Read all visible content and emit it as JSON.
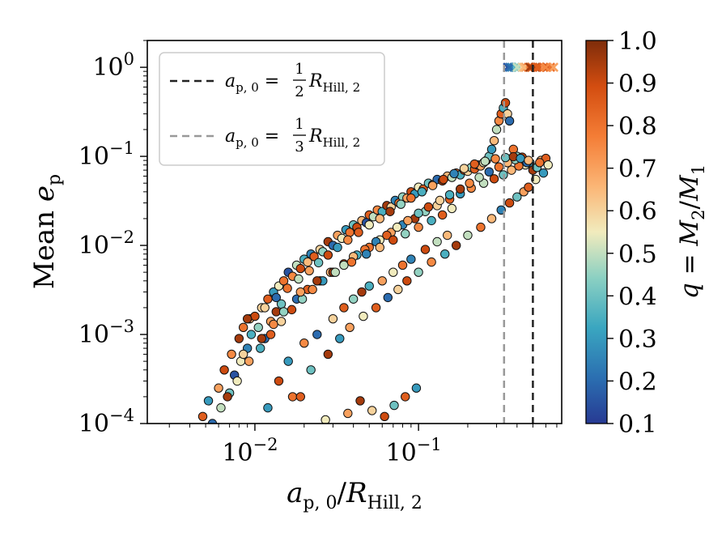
{
  "chart_data": {
    "type": "scatter",
    "title": "",
    "xlabel": "a_{p,0}/R_{Hill,2}",
    "ylabel": "Mean e_p",
    "xscale": "log",
    "yscale": "log",
    "xlim": [
      0.0022,
      0.75
    ],
    "ylim": [
      0.0001,
      2.0
    ],
    "xticks": [
      {
        "value": 0.01,
        "base": "10",
        "exp": "−2"
      },
      {
        "value": 0.1,
        "base": "10",
        "exp": "−1"
      }
    ],
    "yticks": [
      {
        "value": 1,
        "base": "10",
        "exp": "0"
      },
      {
        "value": 0.1,
        "base": "10",
        "exp": "−1"
      },
      {
        "value": 0.01,
        "base": "10",
        "exp": "−2"
      },
      {
        "value": 0.001,
        "base": "10",
        "exp": "−3"
      },
      {
        "value": 0.0001,
        "base": "10",
        "exp": "−4"
      }
    ],
    "grid": false,
    "vlines": [
      {
        "x": 0.5,
        "color": "#222222",
        "style": "dashed",
        "label": "a_{p,0} = 1/2 R_{Hill,2}",
        "label_var": "a",
        "label_sub": "p, 0",
        "label_num": "1",
        "label_den": "2",
        "label_R": "R",
        "label_Rsub": "Hill, 2"
      },
      {
        "x": 0.3333,
        "color": "#999999",
        "style": "dashed",
        "label": "a_{p,0} = 1/3 R_{Hill,2}",
        "label_var": "a",
        "label_sub": "p, 0",
        "label_num": "1",
        "label_den": "3",
        "label_R": "R",
        "label_Rsub": "Hill, 2"
      }
    ],
    "legend_position": "upper-left",
    "colorbar": {
      "label": "q = M_2/M_1",
      "range": [
        0.1,
        1.0
      ],
      "ticks": [
        "1.0",
        "0.9",
        "0.8",
        "0.7",
        "0.6",
        "0.5",
        "0.4",
        "0.3",
        "0.2",
        "0.1"
      ],
      "colormap": "RdYlBu_r-style (blue → cream → dark orange)"
    },
    "points_note": "Several thousand scatter points; representative sample listed. Crosses at Mean e_p = 1 mark unstable/ejected systems.",
    "series": [
      {
        "name": "circles",
        "marker": "circle",
        "x": [
          0.0048,
          0.0052,
          0.0055,
          0.006,
          0.0062,
          0.0065,
          0.007,
          0.0072,
          0.0075,
          0.008,
          0.0082,
          0.0085,
          0.009,
          0.0093,
          0.0095,
          0.01,
          0.0105,
          0.011,
          0.0115,
          0.012,
          0.0125,
          0.013,
          0.0135,
          0.014,
          0.0145,
          0.015,
          0.016,
          0.017,
          0.018,
          0.019,
          0.02,
          0.021,
          0.022,
          0.023,
          0.025,
          0.026,
          0.028,
          0.03,
          0.032,
          0.034,
          0.036,
          0.038,
          0.04,
          0.042,
          0.045,
          0.048,
          0.05,
          0.053,
          0.056,
          0.06,
          0.064,
          0.068,
          0.072,
          0.076,
          0.08,
          0.085,
          0.09,
          0.095,
          0.1,
          0.107,
          0.115,
          0.122,
          0.13,
          0.14,
          0.15,
          0.16,
          0.17,
          0.18,
          0.19,
          0.2,
          0.21,
          0.22,
          0.23,
          0.24,
          0.25,
          0.26,
          0.27,
          0.28,
          0.29,
          0.3,
          0.31,
          0.32,
          0.33,
          0.34,
          0.35,
          0.36,
          0.38,
          0.4,
          0.42,
          0.45,
          0.48,
          0.5,
          0.53,
          0.56,
          0.6,
          0.014,
          0.016,
          0.02,
          0.024,
          0.03,
          0.035,
          0.04,
          0.045,
          0.05,
          0.06,
          0.07,
          0.08,
          0.09,
          0.11,
          0.13,
          0.15,
          0.017,
          0.022,
          0.028,
          0.033,
          0.038,
          0.046,
          0.055,
          0.065,
          0.075,
          0.085,
          0.1,
          0.12,
          0.145,
          0.17,
          0.2,
          0.24,
          0.28,
          0.32,
          0.36,
          0.4,
          0.44,
          0.47,
          0.52,
          0.58,
          0.0085,
          0.011,
          0.013,
          0.015,
          0.018,
          0.021,
          0.025,
          0.029,
          0.035,
          0.042,
          0.05,
          0.058,
          0.068,
          0.08,
          0.095,
          0.11,
          0.13,
          0.155,
          0.18,
          0.21,
          0.25,
          0.29,
          0.33,
          0.37,
          0.41,
          0.46,
          0.0068,
          0.0078,
          0.0092,
          0.0108,
          0.0125,
          0.0145,
          0.0168,
          0.0195,
          0.0225,
          0.026,
          0.03,
          0.035,
          0.04,
          0.047,
          0.055,
          0.064,
          0.074,
          0.086,
          0.1,
          0.115,
          0.135,
          0.155,
          0.18,
          0.205,
          0.235,
          0.27,
          0.31,
          0.35,
          0.39,
          0.43,
          0.012,
          0.019,
          0.027,
          0.037,
          0.044,
          0.052,
          0.062,
          0.071,
          0.083,
          0.097,
          0.019,
          0.024,
          0.031,
          0.039,
          0.048,
          0.058,
          0.07,
          0.083,
          0.1,
          0.12,
          0.14,
          0.16,
          0.009,
          0.0115,
          0.0135,
          0.0158,
          0.0185,
          0.0215,
          0.0245,
          0.028,
          0.032,
          0.037,
          0.043,
          0.05,
          0.058,
          0.067,
          0.078,
          0.09,
          0.105,
          0.122,
          0.142,
          0.165,
          0.19,
          0.22,
          0.255,
          0.295,
          0.34,
          0.38,
          0.42,
          0.47,
          0.55,
          0.62
        ],
        "y": [
          0.00012,
          0.00018,
          0.0001,
          0.00025,
          0.00015,
          0.0004,
          0.00022,
          0.0006,
          0.00035,
          0.0009,
          0.0005,
          0.0012,
          0.0007,
          0.0015,
          0.001,
          0.0016,
          0.0012,
          0.002,
          0.0009,
          0.0025,
          0.0014,
          0.003,
          0.0018,
          0.0035,
          0.0022,
          0.004,
          0.005,
          0.0045,
          0.006,
          0.0055,
          0.007,
          0.0065,
          0.008,
          0.0075,
          0.009,
          0.0085,
          0.011,
          0.01,
          0.013,
          0.012,
          0.015,
          0.014,
          0.017,
          0.016,
          0.019,
          0.018,
          0.022,
          0.021,
          0.025,
          0.024,
          0.028,
          0.027,
          0.032,
          0.03,
          0.035,
          0.034,
          0.04,
          0.038,
          0.045,
          0.043,
          0.05,
          0.048,
          0.055,
          0.053,
          0.06,
          0.058,
          0.065,
          0.062,
          0.07,
          0.068,
          0.075,
          0.072,
          0.08,
          0.078,
          0.085,
          0.09,
          0.1,
          0.12,
          0.15,
          0.2,
          0.25,
          0.3,
          0.35,
          0.4,
          0.3,
          0.25,
          0.12,
          0.1,
          0.09,
          0.08,
          0.085,
          0.07,
          0.075,
          0.09,
          0.095,
          0.0003,
          0.0005,
          0.0008,
          0.001,
          0.0015,
          0.002,
          0.0025,
          0.003,
          0.0035,
          0.004,
          0.005,
          0.006,
          0.007,
          0.009,
          0.011,
          0.013,
          0.0002,
          0.0004,
          0.0006,
          0.0009,
          0.0012,
          0.0016,
          0.002,
          0.0026,
          0.0032,
          0.004,
          0.005,
          0.0065,
          0.008,
          0.01,
          0.013,
          0.016,
          0.02,
          0.025,
          0.03,
          0.035,
          0.04,
          0.045,
          0.055,
          0.065,
          0.0006,
          0.0009,
          0.0013,
          0.0018,
          0.0025,
          0.0032,
          0.004,
          0.005,
          0.0062,
          0.0078,
          0.0095,
          0.0115,
          0.014,
          0.017,
          0.02,
          0.024,
          0.028,
          0.033,
          0.038,
          0.044,
          0.05,
          0.056,
          0.062,
          0.07,
          0.078,
          0.085,
          0.0002,
          0.0003,
          0.0005,
          0.0007,
          0.001,
          0.0014,
          0.0019,
          0.0025,
          0.0032,
          0.004,
          0.005,
          0.006,
          0.0075,
          0.009,
          0.011,
          0.013,
          0.016,
          0.019,
          0.023,
          0.027,
          0.032,
          0.037,
          0.043,
          0.05,
          0.058,
          0.067,
          0.076,
          0.085,
          0.092,
          0.098,
          0.00015,
          0.0002,
          0.00011,
          0.00013,
          0.00018,
          0.00014,
          0.00012,
          0.00016,
          0.0002,
          0.00025,
          0.003,
          0.004,
          0.005,
          0.0065,
          0.008,
          0.0095,
          0.0115,
          0.0135,
          0.016,
          0.019,
          0.022,
          0.026,
          0.0015,
          0.002,
          0.0026,
          0.0033,
          0.0042,
          0.0052,
          0.0064,
          0.0078,
          0.0095,
          0.0115,
          0.014,
          0.017,
          0.02,
          0.024,
          0.029,
          0.034,
          0.04,
          0.047,
          0.055,
          0.064,
          0.073,
          0.082,
          0.088,
          0.094,
          0.097,
          0.099,
          0.095,
          0.09,
          0.085,
          0.08
        ],
        "q": [
          0.85,
          0.3,
          0.2,
          0.7,
          0.5,
          0.9,
          0.4,
          0.75,
          0.15,
          0.95,
          0.55,
          0.8,
          0.25,
          0.65,
          0.35,
          0.9,
          0.45,
          0.6,
          0.2,
          0.85,
          0.7,
          0.3,
          0.95,
          0.55,
          0.4,
          0.8,
          0.15,
          0.75,
          0.5,
          0.9,
          0.35,
          0.65,
          0.25,
          0.85,
          0.6,
          0.45,
          0.95,
          0.2,
          0.7,
          0.55,
          0.3,
          0.8,
          0.4,
          0.9,
          0.65,
          0.15,
          0.85,
          0.5,
          0.75,
          0.35,
          0.95,
          0.6,
          0.25,
          0.8,
          0.45,
          0.7,
          0.9,
          0.3,
          0.55,
          0.85,
          0.4,
          0.75,
          0.2,
          0.95,
          0.65,
          0.5,
          0.8,
          0.35,
          0.9,
          0.6,
          0.45,
          0.85,
          0.25,
          0.7,
          0.55,
          0.95,
          0.4,
          0.3,
          0.65,
          0.5,
          0.75,
          0.85,
          0.35,
          0.9,
          0.6,
          0.2,
          0.8,
          0.45,
          0.7,
          0.55,
          0.3,
          0.95,
          0.4,
          0.65,
          0.85,
          0.9,
          0.3,
          0.75,
          0.2,
          0.6,
          0.85,
          0.45,
          0.95,
          0.35,
          0.7,
          0.55,
          0.8,
          0.25,
          0.9,
          0.5,
          0.65,
          0.8,
          0.4,
          0.95,
          0.3,
          0.7,
          0.55,
          0.85,
          0.2,
          0.6,
          0.9,
          0.45,
          0.75,
          0.35,
          0.95,
          0.5,
          0.8,
          0.65,
          0.25,
          0.9,
          0.4,
          0.7,
          0.85,
          0.55,
          0.3,
          0.6,
          0.95,
          0.75,
          0.45,
          0.2,
          0.85,
          0.5,
          0.65,
          0.9,
          0.35,
          0.8,
          0.55,
          0.7,
          0.25,
          0.95,
          0.45,
          0.6,
          0.85,
          0.3,
          0.75,
          0.5,
          0.9,
          0.4,
          0.65,
          0.8,
          0.2,
          0.95,
          0.55,
          0.7,
          0.35,
          0.85,
          0.6,
          0.9,
          0.45,
          0.75,
          0.3,
          0.95,
          0.5,
          0.65,
          0.8,
          0.25,
          0.85,
          0.55,
          0.7,
          0.4,
          0.9,
          0.6,
          0.35,
          0.95,
          0.75,
          0.5,
          0.2,
          0.8,
          0.65,
          0.45,
          0.9,
          0.3,
          0.85,
          0.55,
          0.7,
          0.95,
          0.6,
          0.9,
          0.4,
          0.85,
          0.3,
          0.7,
          0.95,
          0.5,
          0.8,
          0.25,
          0.65,
          0.9,
          0.45,
          0.75,
          0.35,
          0.85,
          0.55,
          0.95,
          0.6,
          0.2,
          0.8,
          0.5,
          0.7,
          0.4,
          0.9,
          0.3,
          0.75,
          0.85,
          0.55,
          0.65,
          0.95,
          0.45,
          0.8,
          0.35,
          0.7,
          0.9,
          0.25,
          0.6,
          0.85,
          0.5,
          0.75,
          0.4,
          0.95,
          0.3,
          0.65,
          0.8,
          0.55
        ]
      },
      {
        "name": "crosses",
        "marker": "x",
        "x": [
          0.35,
          0.37,
          0.39,
          0.41,
          0.43,
          0.45,
          0.47,
          0.49,
          0.52,
          0.55,
          0.58,
          0.61,
          0.64,
          0.67,
          0.36,
          0.4,
          0.44,
          0.48,
          0.53,
          0.6
        ],
        "y": [
          1,
          1,
          1,
          1,
          1,
          1,
          1,
          1,
          1,
          1,
          1,
          1,
          1,
          1,
          1,
          1,
          1,
          1,
          1,
          1
        ],
        "q": [
          0.15,
          0.25,
          0.35,
          0.45,
          0.6,
          0.7,
          0.8,
          0.9,
          0.95,
          0.85,
          0.75,
          0.9,
          0.8,
          0.7,
          0.2,
          0.5,
          0.65,
          0.95,
          0.85,
          0.75
        ]
      }
    ]
  }
}
